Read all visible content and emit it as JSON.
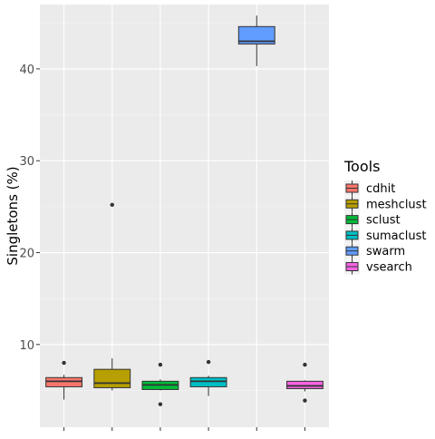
{
  "chart_data": {
    "type": "boxplot",
    "ylabel": "Singletons (%)",
    "xlabel": "",
    "ylim": [
      1,
      47
    ],
    "yticks": [
      10,
      20,
      30,
      40
    ],
    "grid": true,
    "legend": {
      "title": "Tools",
      "placement": "right"
    },
    "series": [
      {
        "name": "cdhit",
        "color": "#F8766D",
        "lower": 4.0,
        "q1": 5.4,
        "median": 6.0,
        "q3": 6.4,
        "upper": 6.7,
        "outliers": [
          8.0
        ]
      },
      {
        "name": "meshclust",
        "color": "#B79F00",
        "lower": 5.0,
        "q1": 5.3,
        "median": 5.8,
        "q3": 7.3,
        "upper": 8.5,
        "outliers": [
          25.2
        ]
      },
      {
        "name": "sclust",
        "color": "#00BA38",
        "lower": 5.0,
        "q1": 5.1,
        "median": 5.6,
        "q3": 6.0,
        "upper": 6.2,
        "outliers": [
          7.8,
          3.5
        ]
      },
      {
        "name": "sumaclust",
        "color": "#00BFC4",
        "lower": 4.4,
        "q1": 5.4,
        "median": 6.0,
        "q3": 6.4,
        "upper": 6.6,
        "outliers": [
          8.1
        ]
      },
      {
        "name": "swarm",
        "color": "#619CFF",
        "lower": 40.3,
        "q1": 42.7,
        "median": 43.0,
        "q3": 44.6,
        "upper": 45.8,
        "outliers": []
      },
      {
        "name": "vsearch",
        "color": "#F564E3",
        "lower": 4.9,
        "q1": 5.2,
        "median": 5.5,
        "q3": 6.0,
        "upper": 6.1,
        "outliers": [
          7.8,
          3.9
        ]
      }
    ]
  }
}
